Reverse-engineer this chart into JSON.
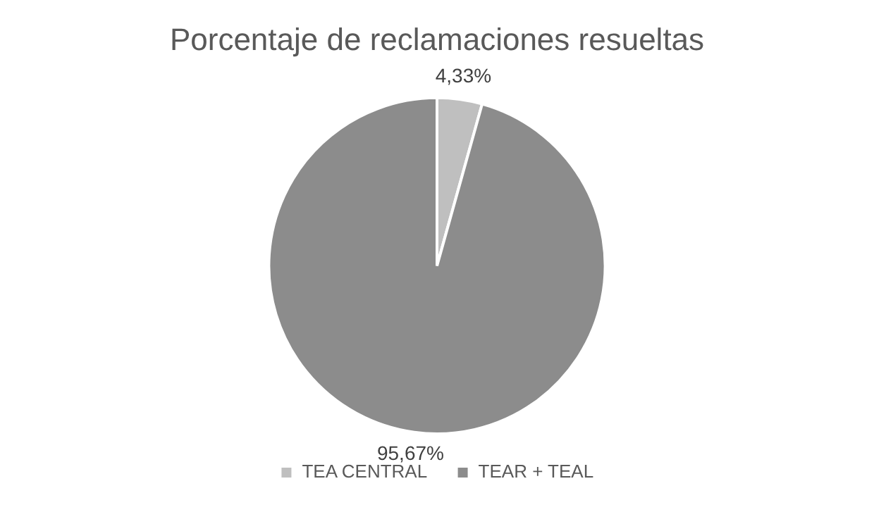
{
  "chart_data": {
    "type": "pie",
    "title": "Porcentaje de reclamaciones resueltas",
    "categories": [
      "TEA CENTRAL",
      "TEAR + TEAL"
    ],
    "values": [
      4.33,
      95.67
    ],
    "colors": [
      "#bfbfbf",
      "#8c8c8c"
    ],
    "value_labels": [
      "4,33%",
      "95,67%"
    ],
    "legend": "bottom"
  }
}
